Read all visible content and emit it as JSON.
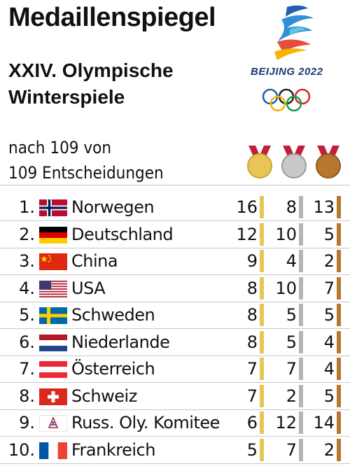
{
  "header": {
    "title": "Medaillenspiegel",
    "subtitle_line1": "XXIV. Olympische",
    "subtitle_line2": "Winterspiele",
    "status_line1": "nach 109 von",
    "status_line2": "109 Entscheidungen",
    "logo_text": "BEIJING 2022"
  },
  "colors": {
    "gold": "#e8c655",
    "silver": "#b5b5b5",
    "bronze": "#b8772f",
    "rule": "#c8c8c8"
  },
  "chart_data": {
    "type": "table",
    "columns": [
      "Gold",
      "Silber",
      "Bronze"
    ],
    "rows": [
      {
        "rank": "1.",
        "country": "Norwegen",
        "flag": "norway",
        "gold": 16,
        "silver": 8,
        "bronze": 13
      },
      {
        "rank": "2.",
        "country": "Deutschland",
        "flag": "germany",
        "gold": 12,
        "silver": 10,
        "bronze": 5
      },
      {
        "rank": "3.",
        "country": "China",
        "flag": "china",
        "gold": 9,
        "silver": 4,
        "bronze": 2
      },
      {
        "rank": "4.",
        "country": "USA",
        "flag": "usa",
        "gold": 8,
        "silver": 10,
        "bronze": 7
      },
      {
        "rank": "5.",
        "country": "Schweden",
        "flag": "sweden",
        "gold": 8,
        "silver": 5,
        "bronze": 5
      },
      {
        "rank": "6.",
        "country": "Niederlande",
        "flag": "netherlands",
        "gold": 8,
        "silver": 5,
        "bronze": 4
      },
      {
        "rank": "7.",
        "country": "Österreich",
        "flag": "austria",
        "gold": 7,
        "silver": 7,
        "bronze": 4
      },
      {
        "rank": "8.",
        "country": "Schweiz",
        "flag": "switzerland",
        "gold": 7,
        "silver": 2,
        "bronze": 5
      },
      {
        "rank": "9.",
        "country": "Russ. Oly. Komitee",
        "flag": "roc",
        "gold": 6,
        "silver": 12,
        "bronze": 14
      },
      {
        "rank": "10.",
        "country": "Frankreich",
        "flag": "france",
        "gold": 5,
        "silver": 7,
        "bronze": 2
      }
    ]
  }
}
